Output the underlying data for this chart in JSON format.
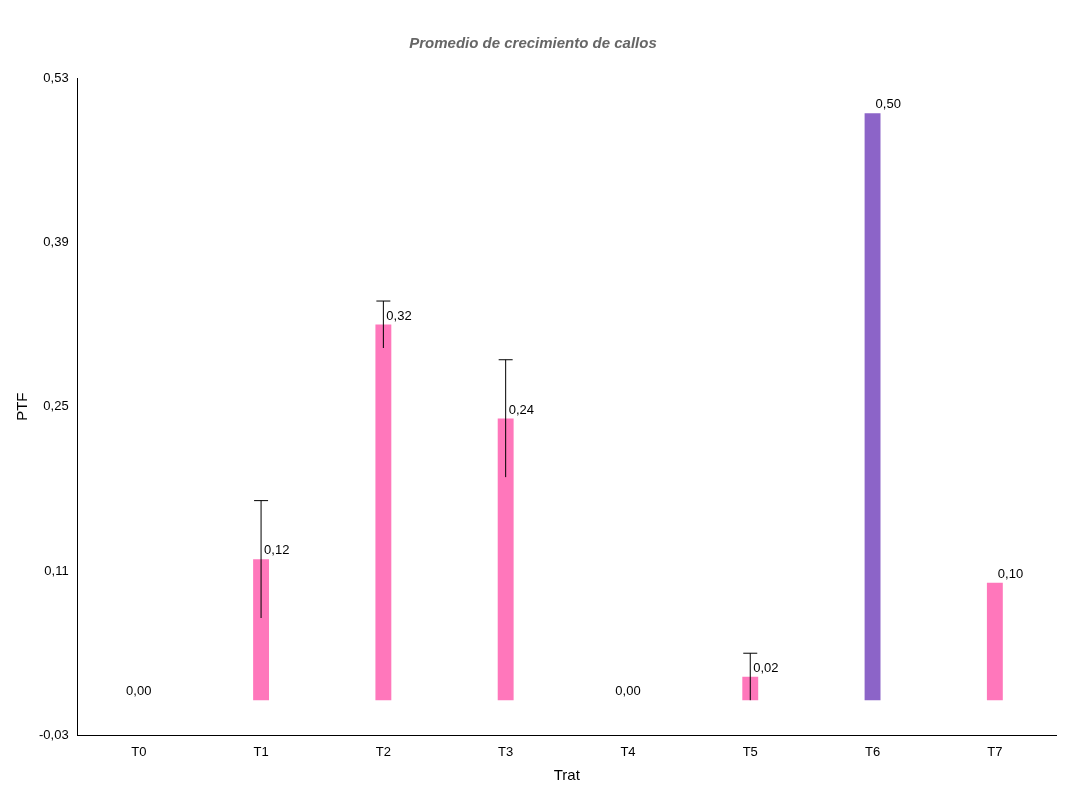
{
  "chart_data": {
    "type": "bar",
    "title": "Promedio de crecimiento de callos",
    "xlabel": "Trat",
    "ylabel": "PTF",
    "categories": [
      "T0",
      "T1",
      "T2",
      "T3",
      "T4",
      "T5",
      "T6",
      "T7"
    ],
    "values": [
      0.0,
      0.12,
      0.32,
      0.24,
      0.0,
      0.02,
      0.5,
      0.1
    ],
    "value_labels": [
      "0,00",
      "0,12",
      "0,32",
      "0,24",
      "0,00",
      "0,02",
      "0,50",
      "0,10"
    ],
    "colors": [
      "#ff77bb",
      "#ff77bb",
      "#ff77bb",
      "#ff77bb",
      "#ff77bb",
      "#ff77bb",
      "#8c64c8",
      "#ff77bb"
    ],
    "errors": [
      null,
      0.05,
      0.02,
      0.05,
      null,
      0.02,
      null,
      null
    ],
    "ylim": [
      -0.03,
      0.53
    ],
    "yticks": [
      {
        "value": -0.03,
        "label": "-0,03"
      },
      {
        "value": 0.11,
        "label": "0,11"
      },
      {
        "value": 0.25,
        "label": "0,25"
      },
      {
        "value": 0.39,
        "label": "0,39"
      },
      {
        "value": 0.53,
        "label": "0,53"
      }
    ],
    "grid": false,
    "legend": false
  }
}
